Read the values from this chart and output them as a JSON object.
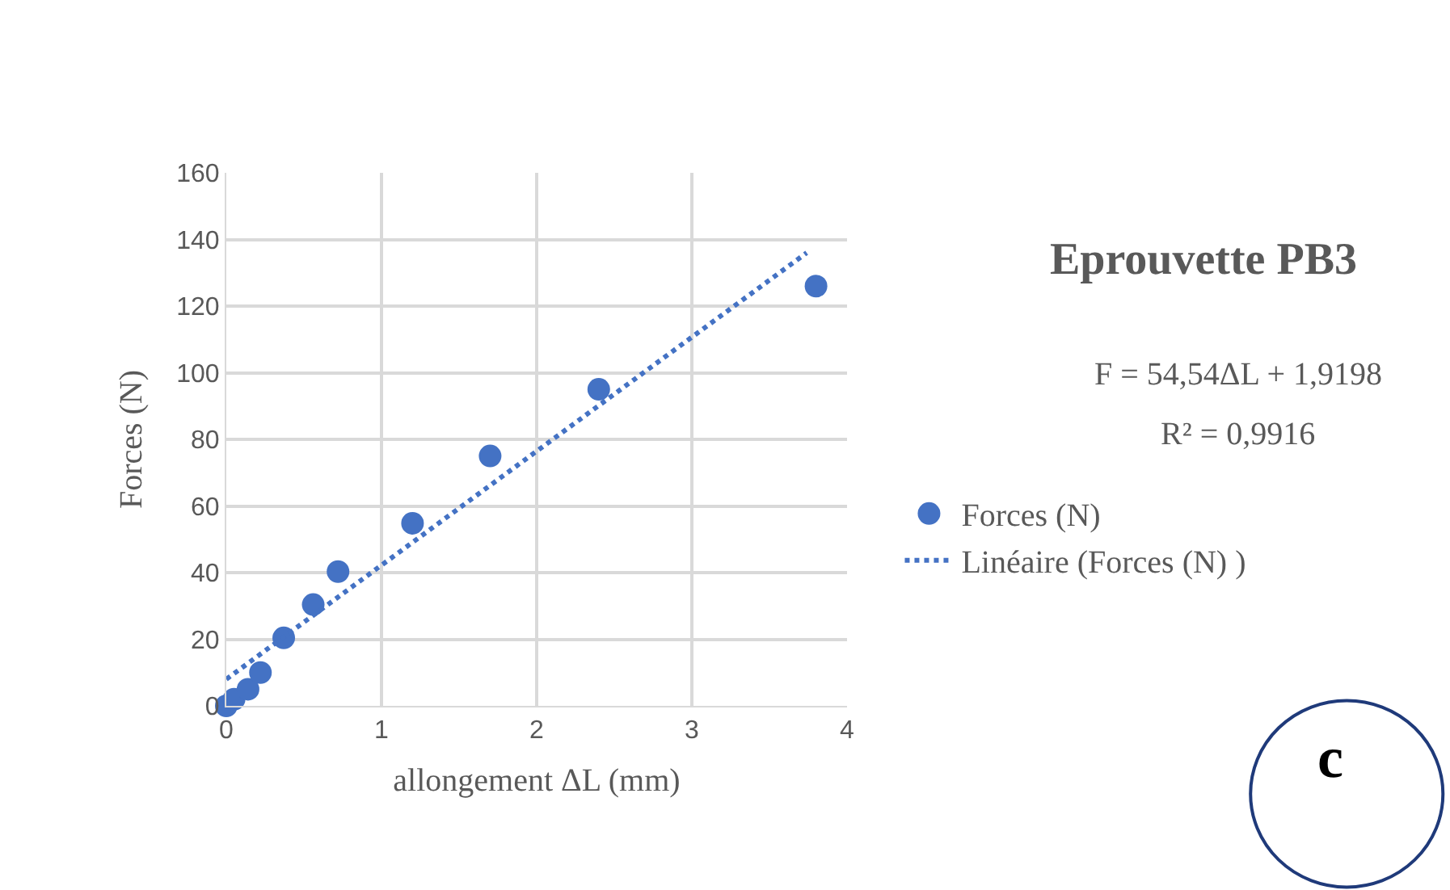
{
  "chart_data": {
    "type": "scatter",
    "title": "Eprouvette PB3",
    "xlabel": "allongement ΔL (mm)",
    "ylabel": "Forces (N)",
    "annotations": [
      "F = 54,54ΔL + 1,9198",
      "R² = 0,9916",
      "c"
    ],
    "series": [
      {
        "name": "Forces (N)",
        "color": "#4472c4",
        "marker": "circle",
        "x": [
          0,
          0.05,
          0.14,
          0.22,
          0.37,
          0.56,
          0.72,
          1.2,
          1.7,
          2.4,
          3.8
        ],
        "values": [
          0,
          2,
          5,
          10,
          20.4,
          30.4,
          40.3,
          54.8,
          75,
          95,
          126
        ]
      },
      {
        "name": "Linéaire (Forces (N) )",
        "type": "line",
        "color": "#4472c4",
        "line_style": "dotted",
        "marker": "none",
        "x": [
          0,
          3.74
        ],
        "values": [
          8,
          136
        ]
      }
    ],
    "xlim": [
      0,
      4
    ],
    "xticks": [
      0,
      1,
      2,
      3,
      4
    ],
    "ylim": [
      0,
      160
    ],
    "yticks": [
      0,
      20,
      40,
      60,
      80,
      100,
      120,
      140,
      160
    ],
    "grid": true,
    "legend": "right"
  }
}
